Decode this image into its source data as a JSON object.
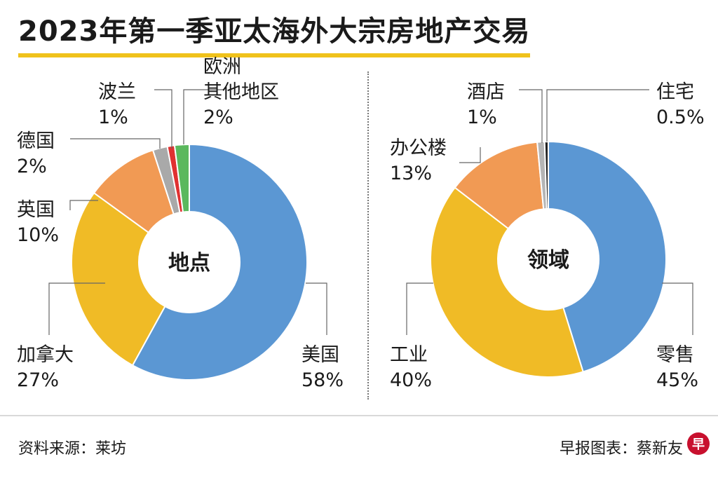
{
  "title": "2023年第一季亚太海外大宗房地产交易",
  "footer": {
    "source": "资料来源：莱坊",
    "credit": "早报图表：蔡新友",
    "logo_glyph": "早"
  },
  "chart_data": [
    {
      "type": "pie",
      "donut": true,
      "center_label": "地点",
      "start_angle_deg": 0,
      "slices": [
        {
          "name": "美国",
          "value": 58,
          "label": "58%",
          "color": "#5b97d3"
        },
        {
          "name": "加拿大",
          "value": 27,
          "label": "27%",
          "color": "#f0bb26"
        },
        {
          "name": "英国",
          "value": 10,
          "label": "10%",
          "color": "#f19a54"
        },
        {
          "name": "德国",
          "value": 2,
          "label": "2%",
          "color": "#a9a9a9"
        },
        {
          "name": "波兰",
          "value": 1,
          "label": "1%",
          "color": "#e03131"
        },
        {
          "name": "欧洲其他地区",
          "name_lines": [
            "欧洲",
            "其他地区"
          ],
          "value": 2,
          "label": "2%",
          "color": "#5bb85d"
        }
      ]
    },
    {
      "type": "pie",
      "donut": true,
      "center_label": "领域",
      "start_angle_deg": 0,
      "slices": [
        {
          "name": "零售",
          "value": 45,
          "label": "45%",
          "color": "#5b97d3"
        },
        {
          "name": "工业",
          "value": 40,
          "label": "40%",
          "color": "#f0bb26"
        },
        {
          "name": "办公楼",
          "value": 13,
          "label": "13%",
          "color": "#f19a54"
        },
        {
          "name": "酒店",
          "value": 1,
          "label": "1%",
          "color": "#b5b5b5"
        },
        {
          "name": "住宅",
          "value": 0.5,
          "label": "0.5%",
          "color": "#222222"
        }
      ]
    }
  ]
}
